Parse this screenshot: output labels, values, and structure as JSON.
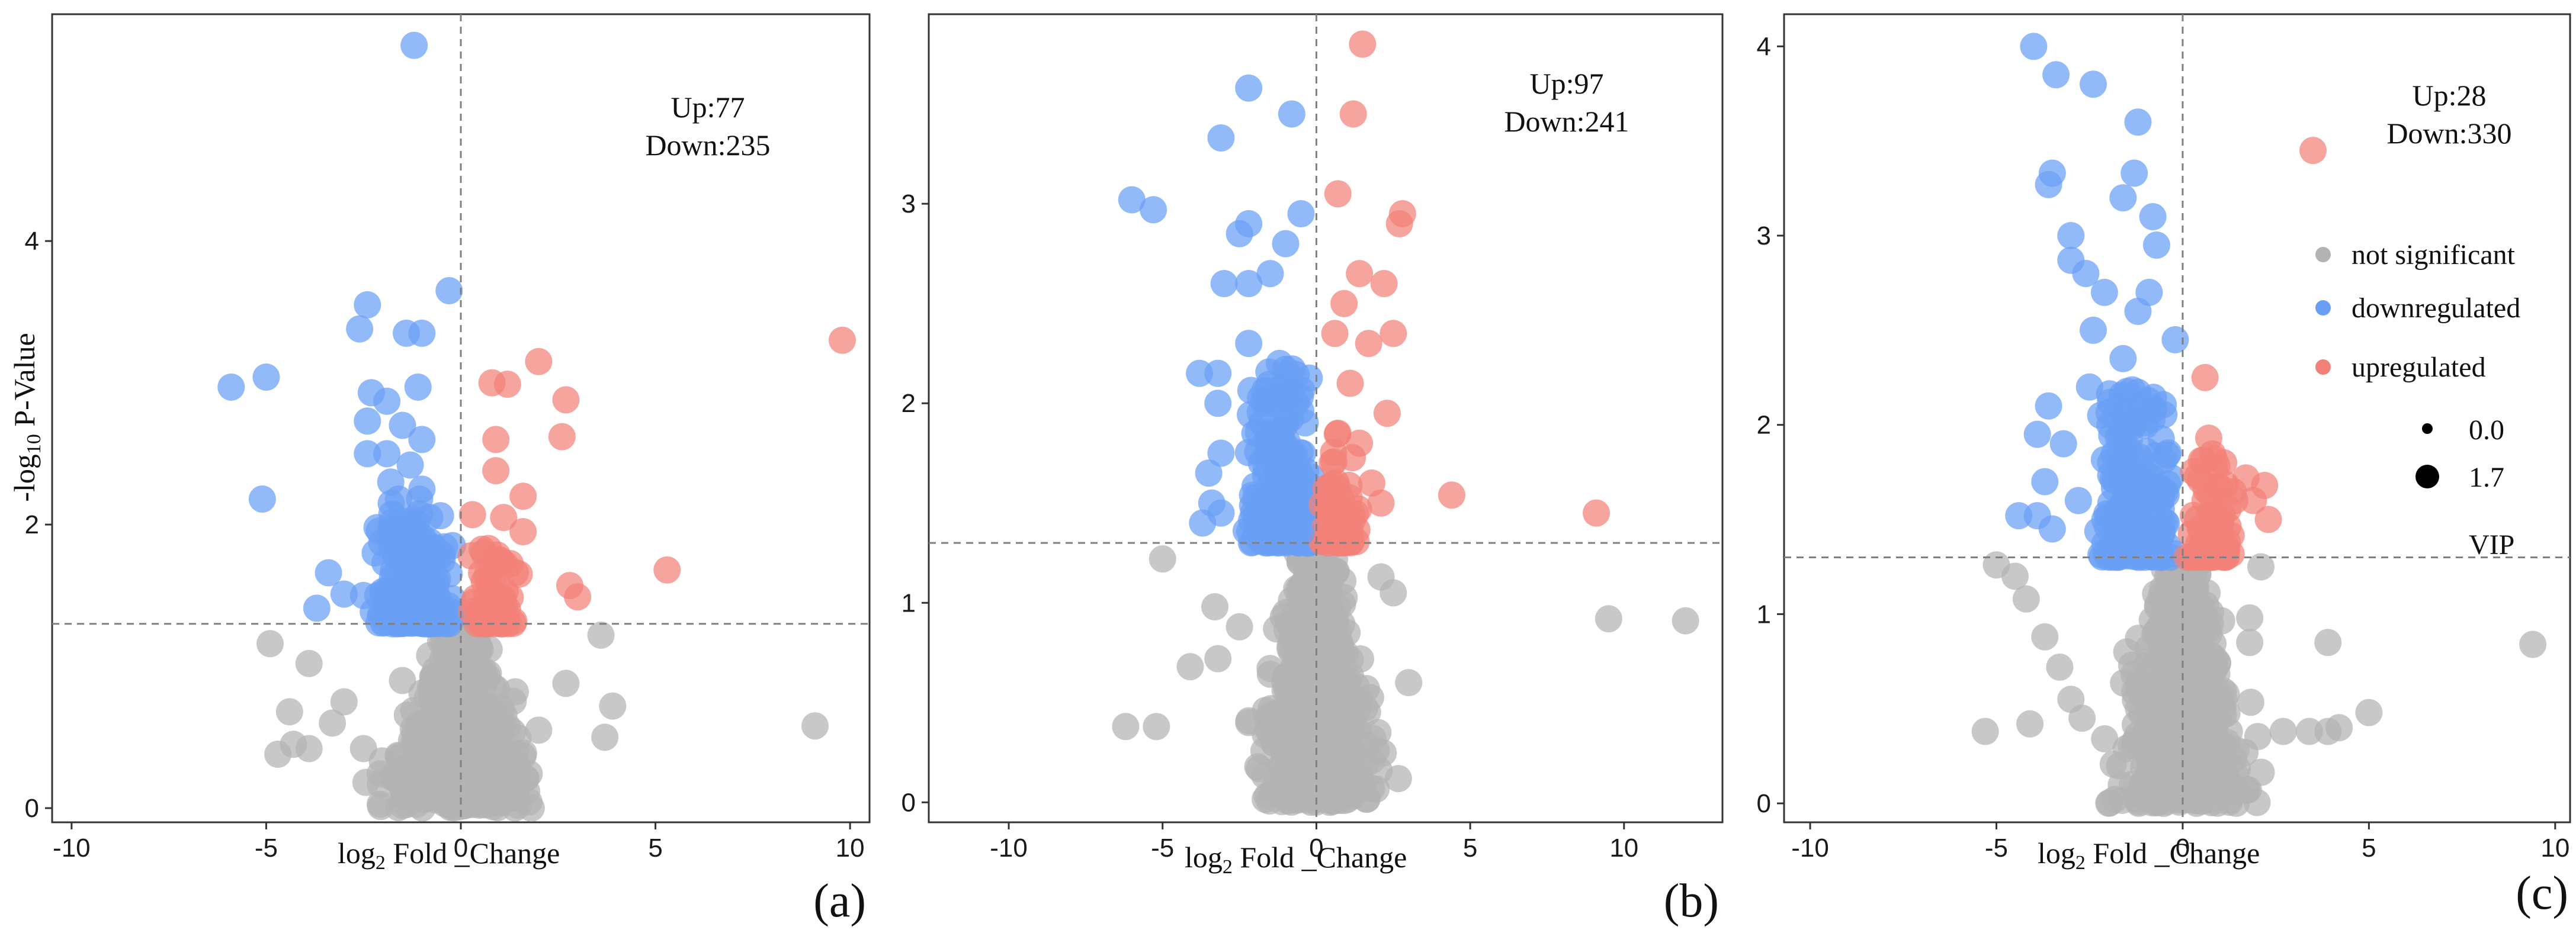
{
  "figure": {
    "legend": {
      "entries": [
        {
          "label": "not significant",
          "color": "#b3b3b3"
        },
        {
          "label": "downregulated",
          "color": "#6a9ff5"
        },
        {
          "label": "upregulated",
          "color": "#f28179"
        }
      ],
      "size_entries": [
        {
          "label": "0.0",
          "size_value": 0.0
        },
        {
          "label": "1.7",
          "size_value": 1.7
        }
      ],
      "size_title": "VIP"
    }
  },
  "chart_data": [
    {
      "type": "scatter",
      "panel_label": "(a)",
      "xlabel_prefix": "log",
      "xlabel_sub": "2",
      "xlabel_main": " Fold _Change",
      "ylabel_prefix": "-log",
      "ylabel_sub": "10",
      "ylabel_main": " P-Value",
      "xlim": [
        -10.5,
        10.5
      ],
      "ylim": [
        -0.1,
        5.6
      ],
      "xticks": [
        -10,
        -5,
        0,
        5,
        10
      ],
      "yticks": [
        0,
        2,
        4
      ],
      "fc_threshold": 0,
      "p_threshold": 1.3,
      "annotation": {
        "up": "Up:77",
        "down": "Down:235"
      },
      "series": [
        {
          "name": "downregulated",
          "points": [
            [
              -1.2,
              5.38
            ],
            [
              -0.3,
              3.65
            ],
            [
              -2.4,
              3.55
            ],
            [
              -2.6,
              3.38
            ],
            [
              -1.4,
              3.35
            ],
            [
              -1.0,
              3.35
            ],
            [
              -5.9,
              2.97
            ],
            [
              -5.0,
              3.04
            ],
            [
              -2.3,
              2.93
            ],
            [
              -1.9,
              2.87
            ],
            [
              -1.1,
              2.97
            ],
            [
              -2.4,
              2.73
            ],
            [
              -1.5,
              2.7
            ],
            [
              -2.4,
              2.5
            ],
            [
              -1.0,
              2.6
            ],
            [
              -1.9,
              2.5
            ],
            [
              -1.3,
              2.42
            ],
            [
              -5.1,
              2.18
            ],
            [
              -3.4,
              1.66
            ],
            [
              -3.0,
              1.51
            ],
            [
              -3.7,
              1.41
            ],
            [
              -2.5,
              1.5
            ],
            [
              -1.8,
              2.3
            ],
            [
              -1.6,
              2.18
            ],
            [
              -1.0,
              2.25
            ],
            [
              -0.8,
              2.05
            ],
            [
              -2.2,
              1.8
            ],
            [
              -0.9,
              1.5
            ]
          ]
        },
        {
          "name": "upregulated",
          "points": [
            [
              9.8,
              3.3
            ],
            [
              2.0,
              3.15
            ],
            [
              1.2,
              2.99
            ],
            [
              0.8,
              3.0
            ],
            [
              2.7,
              2.88
            ],
            [
              0.9,
              2.6
            ],
            [
              2.6,
              2.62
            ],
            [
              0.9,
              2.38
            ],
            [
              1.6,
              2.2
            ],
            [
              0.3,
              2.07
            ],
            [
              1.1,
              2.05
            ],
            [
              1.6,
              1.95
            ],
            [
              1.0,
              1.75
            ],
            [
              2.8,
              1.57
            ],
            [
              3.0,
              1.49
            ],
            [
              5.3,
              1.68
            ],
            [
              0.6,
              1.6
            ],
            [
              1.2,
              1.4
            ],
            [
              0.5,
              1.32
            ],
            [
              1.5,
              1.65
            ]
          ]
        },
        {
          "name": "not significant",
          "points": [
            [
              -4.9,
              1.16
            ],
            [
              -3.9,
              1.02
            ],
            [
              -4.4,
              0.68
            ],
            [
              -3.3,
              0.6
            ],
            [
              -3.0,
              0.75
            ],
            [
              -4.3,
              0.45
            ],
            [
              -3.9,
              0.42
            ],
            [
              -4.7,
              0.38
            ],
            [
              -2.5,
              0.42
            ],
            [
              3.6,
              1.22
            ],
            [
              3.9,
              0.72
            ],
            [
              3.7,
              0.5
            ],
            [
              2.7,
              0.88
            ],
            [
              9.1,
              0.58
            ],
            [
              2.0,
              0.55
            ],
            [
              1.4,
              0.82
            ],
            [
              -0.8,
              0.6
            ],
            [
              0.2,
              0.8
            ],
            [
              -1.5,
              0.9
            ],
            [
              0.6,
              0.4
            ],
            [
              0,
              0.1
            ]
          ]
        }
      ]
    },
    {
      "type": "scatter",
      "panel_label": "(b)",
      "xlabel_prefix": "log",
      "xlabel_sub": "2",
      "xlabel_main": " Fold _Change",
      "xlim": [
        -12.6,
        13.2
      ],
      "ylim": [
        -0.1,
        3.95
      ],
      "xticks": [
        -10,
        -5,
        0,
        5,
        10
      ],
      "yticks": [
        0,
        1,
        2,
        3
      ],
      "fc_threshold": 0,
      "p_threshold": 1.3,
      "annotation": {
        "up": "Up:97",
        "down": "Down:241"
      },
      "series": [
        {
          "name": "downregulated",
          "points": [
            [
              -6.0,
              3.02
            ],
            [
              -5.3,
              2.97
            ],
            [
              -2.2,
              3.58
            ],
            [
              -3.1,
              3.33
            ],
            [
              -0.8,
              3.45
            ],
            [
              -2.2,
              2.9
            ],
            [
              -0.5,
              2.95
            ],
            [
              -2.5,
              2.85
            ],
            [
              -1.0,
              2.8
            ],
            [
              -3.0,
              2.6
            ],
            [
              -2.2,
              2.6
            ],
            [
              -1.5,
              2.65
            ],
            [
              -3.8,
              2.15
            ],
            [
              -3.2,
              2.15
            ],
            [
              -3.2,
              2.0
            ],
            [
              -2.2,
              2.3
            ],
            [
              -1.6,
              2.0
            ],
            [
              -3.1,
              1.75
            ],
            [
              -3.5,
              1.65
            ],
            [
              -3.4,
              1.5
            ],
            [
              -3.7,
              1.4
            ],
            [
              -3.1,
              1.45
            ],
            [
              -1.2,
              2.2
            ],
            [
              -0.8,
              2.05
            ],
            [
              -2.0,
              1.85
            ],
            [
              -1.0,
              1.55
            ],
            [
              -0.5,
              1.35
            ]
          ]
        },
        {
          "name": "upregulated",
          "points": [
            [
              1.5,
              3.8
            ],
            [
              1.2,
              3.45
            ],
            [
              2.8,
              2.95
            ],
            [
              2.7,
              2.9
            ],
            [
              0.7,
              3.05
            ],
            [
              1.4,
              2.65
            ],
            [
              2.2,
              2.6
            ],
            [
              0.9,
              2.5
            ],
            [
              2.5,
              2.35
            ],
            [
              0.6,
              2.35
            ],
            [
              1.7,
              2.3
            ],
            [
              1.1,
              2.1
            ],
            [
              2.3,
              1.95
            ],
            [
              0.7,
              1.85
            ],
            [
              4.4,
              1.54
            ],
            [
              9.1,
              1.45
            ],
            [
              1.8,
              1.6
            ],
            [
              0.9,
              1.45
            ],
            [
              2.1,
              1.5
            ],
            [
              0.5,
              1.35
            ],
            [
              1.4,
              1.8
            ]
          ]
        },
        {
          "name": "not significant",
          "points": [
            [
              -6.2,
              0.38
            ],
            [
              -5.2,
              0.38
            ],
            [
              -5.0,
              1.22
            ],
            [
              -4.1,
              0.68
            ],
            [
              -3.3,
              0.98
            ],
            [
              -3.2,
              0.72
            ],
            [
              -2.2,
              0.4
            ],
            [
              -2.5,
              0.88
            ],
            [
              -0.8,
              0.55
            ],
            [
              2.1,
              1.13
            ],
            [
              2.5,
              1.05
            ],
            [
              3.0,
              0.6
            ],
            [
              2.0,
              0.35
            ],
            [
              9.5,
              0.92
            ],
            [
              12.0,
              0.91
            ],
            [
              -1.0,
              0.95
            ],
            [
              0.8,
              0.75
            ],
            [
              0,
              0.15
            ],
            [
              -0.4,
              0.25
            ],
            [
              0.4,
              0.55
            ]
          ]
        }
      ]
    },
    {
      "type": "scatter",
      "panel_label": "(c)",
      "xlabel_prefix": "log",
      "xlabel_sub": "2",
      "xlabel_main": " Fold _Change",
      "xlim": [
        -10.7,
        10.4
      ],
      "ylim": [
        -0.1,
        4.17
      ],
      "xticks": [
        -10,
        -5,
        0,
        5,
        10
      ],
      "yticks": [
        0,
        1,
        2,
        3,
        4
      ],
      "fc_threshold": 0,
      "p_threshold": 1.3,
      "annotation": {
        "up": "Up:28",
        "down": "Down:330"
      },
      "series": [
        {
          "name": "downregulated",
          "points": [
            [
              -4.0,
              4.0
            ],
            [
              -3.4,
              3.85
            ],
            [
              -2.4,
              3.8
            ],
            [
              -1.2,
              3.6
            ],
            [
              -3.5,
              3.33
            ],
            [
              -3.6,
              3.27
            ],
            [
              -1.3,
              3.33
            ],
            [
              -1.6,
              3.2
            ],
            [
              -3.0,
              3.0
            ],
            [
              -0.8,
              3.1
            ],
            [
              -0.7,
              2.95
            ],
            [
              -3.0,
              2.87
            ],
            [
              -2.6,
              2.8
            ],
            [
              -2.1,
              2.7
            ],
            [
              -0.9,
              2.7
            ],
            [
              -2.4,
              2.5
            ],
            [
              -1.2,
              2.6
            ],
            [
              -0.2,
              2.45
            ],
            [
              -1.6,
              2.35
            ],
            [
              -2.5,
              2.2
            ],
            [
              -3.6,
              2.1
            ],
            [
              -3.9,
              1.95
            ],
            [
              -3.2,
              1.9
            ],
            [
              -3.7,
              1.7
            ],
            [
              -4.4,
              1.52
            ],
            [
              -3.9,
              1.52
            ],
            [
              -3.5,
              1.45
            ],
            [
              -2.8,
              1.6
            ],
            [
              -2.2,
              2.05
            ],
            [
              -1.6,
              1.8
            ],
            [
              -0.6,
              1.6
            ],
            [
              -1.0,
              1.4
            ]
          ]
        },
        {
          "name": "upregulated",
          "points": [
            [
              3.5,
              3.45
            ],
            [
              0.6,
              2.25
            ],
            [
              0.7,
              1.93
            ],
            [
              1.1,
              1.8
            ],
            [
              1.7,
              1.72
            ],
            [
              2.2,
              1.68
            ],
            [
              1.9,
              1.6
            ],
            [
              1.4,
              1.6
            ],
            [
              0.6,
              1.6
            ],
            [
              1.0,
              1.5
            ],
            [
              2.3,
              1.5
            ],
            [
              0.5,
              1.35
            ],
            [
              1.2,
              1.38
            ],
            [
              0.8,
              1.42
            ]
          ]
        },
        {
          "name": "not significant",
          "points": [
            [
              -5.0,
              1.26
            ],
            [
              -4.5,
              1.2
            ],
            [
              -4.2,
              1.08
            ],
            [
              -3.7,
              0.88
            ],
            [
              -3.3,
              0.72
            ],
            [
              -3.0,
              0.55
            ],
            [
              -2.7,
              0.45
            ],
            [
              -4.1,
              0.42
            ],
            [
              -5.3,
              0.38
            ],
            [
              2.1,
              1.25
            ],
            [
              1.8,
              0.98
            ],
            [
              1.8,
              0.85
            ],
            [
              3.9,
              0.85
            ],
            [
              2.7,
              0.38
            ],
            [
              3.4,
              0.38
            ],
            [
              3.9,
              0.38
            ],
            [
              4.2,
              0.4
            ],
            [
              5.0,
              0.48
            ],
            [
              9.4,
              0.84
            ],
            [
              -1.5,
              0.8
            ],
            [
              0.3,
              0.65
            ],
            [
              -0.3,
              0.3
            ],
            [
              0,
              0.1
            ]
          ]
        }
      ]
    }
  ]
}
